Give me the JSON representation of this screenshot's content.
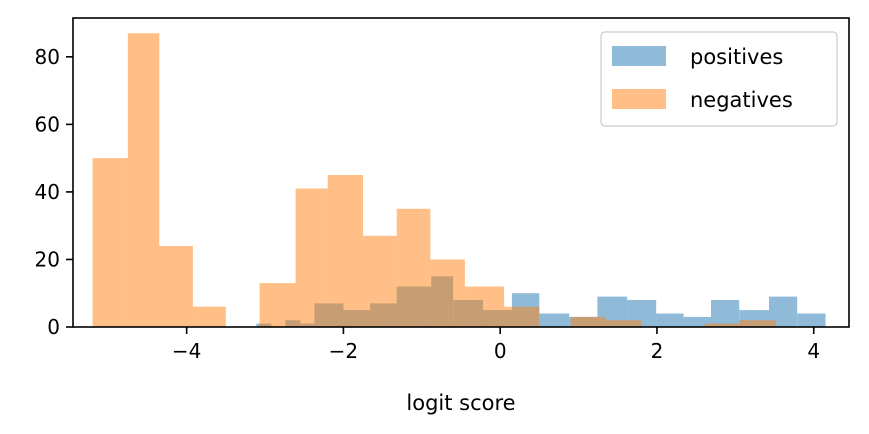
{
  "chart_data": {
    "type": "bar",
    "subtype": "overlapping-histogram",
    "xlabel": "logit score",
    "ylabel": "",
    "title": "",
    "xlim": [
      -5.45,
      4.45
    ],
    "ylim": [
      0,
      91.5
    ],
    "xticks": [
      -4,
      -2,
      0,
      2,
      4
    ],
    "xtick_labels": [
      "−4",
      "−2",
      "0",
      "2",
      "4"
    ],
    "yticks": [
      0,
      20,
      40,
      60,
      80
    ],
    "ytick_labels": [
      "0",
      "20",
      "40",
      "60",
      "80"
    ],
    "grid": false,
    "legend_position": "top-right",
    "series": [
      {
        "name": "positives",
        "color": "#1f77b4",
        "opacity": 0.5,
        "bins": [
          {
            "x0": -3.11,
            "x1": -2.92,
            "count": 1
          },
          {
            "x0": -2.92,
            "x1": -2.74,
            "count": 0
          },
          {
            "x0": -2.74,
            "x1": -2.55,
            "count": 2
          },
          {
            "x0": -2.55,
            "x1": -2.37,
            "count": 1
          },
          {
            "x0": -2.37,
            "x1": -2.0,
            "count": 7
          },
          {
            "x0": -2.0,
            "x1": -1.66,
            "count": 5
          },
          {
            "x0": -1.66,
            "x1": -1.32,
            "count": 7
          },
          {
            "x0": -1.32,
            "x1": -0.88,
            "count": 12
          },
          {
            "x0": -0.88,
            "x1": -0.6,
            "count": 15
          },
          {
            "x0": -0.6,
            "x1": -0.22,
            "count": 8
          },
          {
            "x0": -0.22,
            "x1": 0.15,
            "count": 5
          },
          {
            "x0": 0.15,
            "x1": 0.5,
            "count": 10
          },
          {
            "x0": 0.5,
            "x1": 0.88,
            "count": 4
          },
          {
            "x0": 0.88,
            "x1": 1.24,
            "count": 3
          },
          {
            "x0": 1.24,
            "x1": 1.62,
            "count": 9
          },
          {
            "x0": 1.62,
            "x1": 1.99,
            "count": 8
          },
          {
            "x0": 1.99,
            "x1": 2.34,
            "count": 4
          },
          {
            "x0": 2.34,
            "x1": 2.69,
            "count": 3
          },
          {
            "x0": 2.69,
            "x1": 3.05,
            "count": 8
          },
          {
            "x0": 3.05,
            "x1": 3.43,
            "count": 5
          },
          {
            "x0": 3.43,
            "x1": 3.79,
            "count": 9
          },
          {
            "x0": 3.79,
            "x1": 4.15,
            "count": 4
          }
        ]
      },
      {
        "name": "negatives",
        "color": "#ff7f0e",
        "opacity": 0.5,
        "bins": [
          {
            "x0": -5.2,
            "x1": -4.75,
            "count": 50
          },
          {
            "x0": -4.75,
            "x1": -4.35,
            "count": 87
          },
          {
            "x0": -4.35,
            "x1": -3.92,
            "count": 24
          },
          {
            "x0": -3.92,
            "x1": -3.5,
            "count": 6
          },
          {
            "x0": -3.5,
            "x1": -3.07,
            "count": 0
          },
          {
            "x0": -3.07,
            "x1": -2.61,
            "count": 13
          },
          {
            "x0": -2.61,
            "x1": -2.2,
            "count": 41
          },
          {
            "x0": -2.2,
            "x1": -1.75,
            "count": 45
          },
          {
            "x0": -1.75,
            "x1": -1.32,
            "count": 27
          },
          {
            "x0": -1.32,
            "x1": -0.89,
            "count": 35
          },
          {
            "x0": -0.89,
            "x1": -0.45,
            "count": 20
          },
          {
            "x0": -0.45,
            "x1": 0.05,
            "count": 12
          },
          {
            "x0": 0.05,
            "x1": 0.5,
            "count": 6
          },
          {
            "x0": 0.5,
            "x1": 0.9,
            "count": 0
          },
          {
            "x0": 0.9,
            "x1": 1.34,
            "count": 3
          },
          {
            "x0": 1.34,
            "x1": 1.8,
            "count": 2
          },
          {
            "x0": 1.8,
            "x1": 2.61,
            "count": 0
          },
          {
            "x0": 2.61,
            "x1": 3.05,
            "count": 1
          },
          {
            "x0": 3.05,
            "x1": 3.52,
            "count": 2
          }
        ]
      }
    ]
  }
}
